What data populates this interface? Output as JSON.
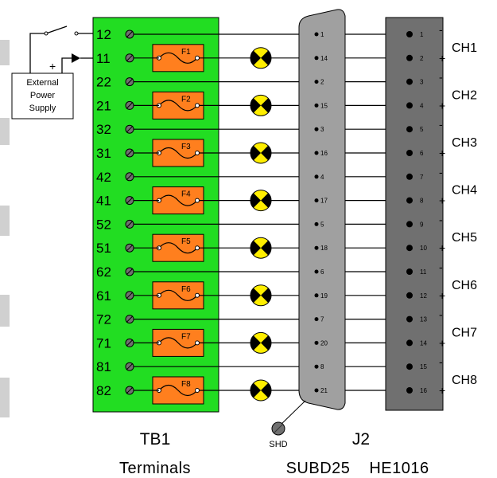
{
  "terminal_block": {
    "name": "TB1",
    "caption": "Terminals",
    "color": "#22dd22",
    "terminals": [
      "12",
      "11",
      "22",
      "21",
      "32",
      "31",
      "42",
      "41",
      "52",
      "51",
      "62",
      "61",
      "72",
      "71",
      "81",
      "82"
    ],
    "fuses": [
      "F1",
      "F2",
      "F3",
      "F4",
      "F5",
      "F6",
      "F7",
      "F8"
    ],
    "fuse_color": "#ff7f1e"
  },
  "connector_j2": {
    "name": "J2",
    "caption": "SUBD25",
    "shield_label": "SHD",
    "pins": [
      "1",
      "14",
      "2",
      "15",
      "3",
      "16",
      "4",
      "17",
      "5",
      "18",
      "6",
      "19",
      "7",
      "20",
      "8",
      "21"
    ]
  },
  "module": {
    "caption": "HE1016",
    "pins": [
      "1",
      "2",
      "3",
      "4",
      "5",
      "6",
      "7",
      "8",
      "9",
      "10",
      "11",
      "12",
      "13",
      "14",
      "15",
      "16"
    ],
    "channels": [
      "CH1",
      "CH2",
      "CH3",
      "CH4",
      "CH5",
      "CH6",
      "CH7",
      "CH8"
    ],
    "minus_sign": "-",
    "plus_sign": "+"
  },
  "power_supply": {
    "lines": [
      "External",
      "Power",
      "Supply"
    ],
    "plus_sign": "+"
  },
  "colors": {
    "lamp_fill": "#ffee00",
    "connector_fill": "#a0a0a0",
    "module_fill": "#707070",
    "left_strip": "#d0d0d0"
  }
}
